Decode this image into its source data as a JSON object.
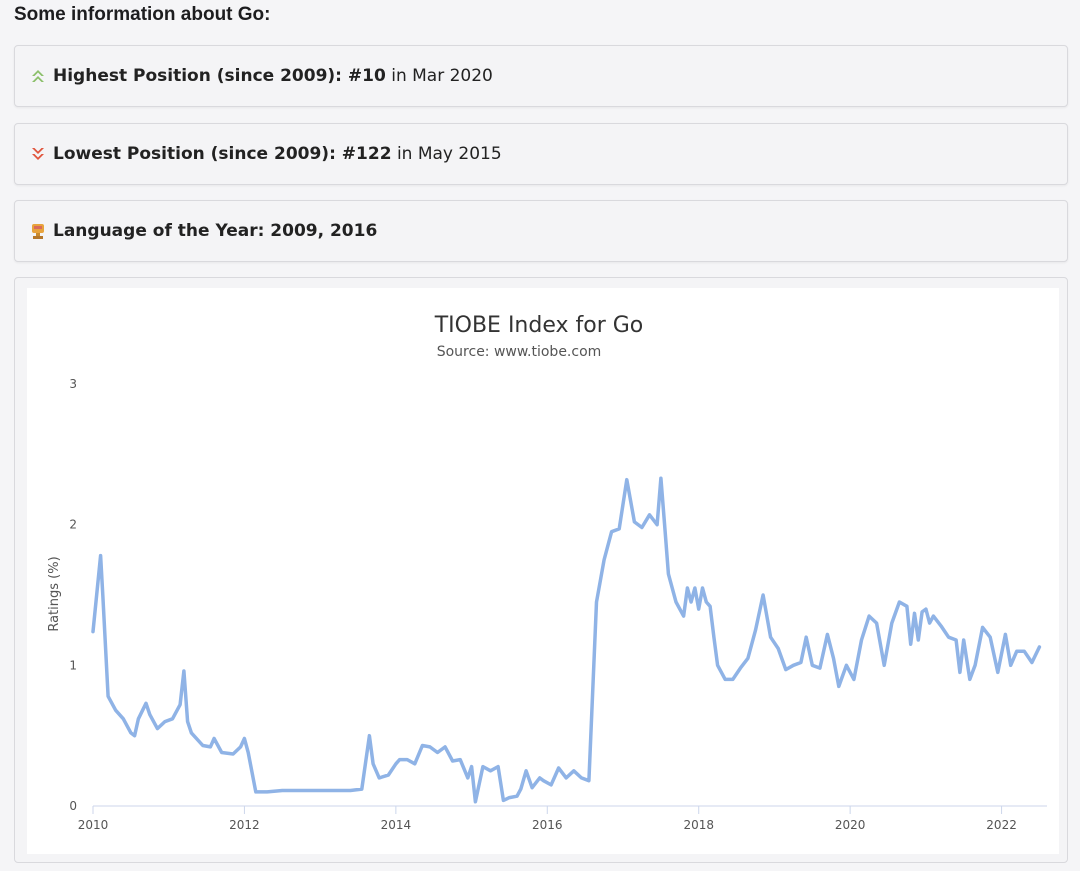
{
  "heading": "Some information about Go:",
  "info": {
    "highest": {
      "label": "Highest Position (since 2009): #10",
      "suffix": "in Mar 2020",
      "icon": "double-chevron-up-icon",
      "color": "#8bbf6a"
    },
    "lowest": {
      "label": "Lowest Position (since 2009): #122",
      "suffix": "in May 2015",
      "icon": "double-chevron-down-icon",
      "color": "#e0553d"
    },
    "language_of_year": {
      "label": "Language of the Year: 2009, 2016",
      "icon": "trophy-icon",
      "color": "#e8a33c"
    }
  },
  "chart_data": {
    "type": "line",
    "title": "TIOBE Index for Go",
    "subtitle": "Source: www.tiobe.com",
    "xlabel": "",
    "ylabel": "Ratings (%)",
    "xlim": [
      2010,
      2022.6
    ],
    "ylim": [
      0,
      3
    ],
    "x_ticks": [
      "2010",
      "2012",
      "2014",
      "2016",
      "2018",
      "2020",
      "2022"
    ],
    "y_ticks": [
      "0",
      "1",
      "2",
      "3"
    ],
    "grid": false,
    "line_color": "#8fb3e6",
    "series": [
      {
        "x": [
          2010.0,
          2010.1,
          2010.13,
          2010.2,
          2010.3,
          2010.4,
          2010.5,
          2010.55,
          2010.6,
          2010.7,
          2010.75,
          2010.85,
          2010.95,
          2011.05,
          2011.15,
          2011.2,
          2011.25,
          2011.3,
          2011.45,
          2011.55,
          2011.6,
          2011.7,
          2011.85,
          2011.95,
          2012.0,
          2012.05,
          2012.15,
          2012.3,
          2012.5,
          2012.8,
          2013.1,
          2013.4,
          2013.55,
          2013.65,
          2013.7,
          2013.78,
          2013.9,
          2014.0,
          2014.05,
          2014.15,
          2014.25,
          2014.35,
          2014.45,
          2014.55,
          2014.65,
          2014.75,
          2014.85,
          2014.95,
          2015.0,
          2015.05,
          2015.15,
          2015.25,
          2015.35,
          2015.42,
          2015.5,
          2015.6,
          2015.65,
          2015.72,
          2015.8,
          2015.9,
          2015.95,
          2016.05,
          2016.15,
          2016.25,
          2016.35,
          2016.45,
          2016.55,
          2016.65,
          2016.75,
          2016.85,
          2016.95,
          2017.05,
          2017.15,
          2017.25,
          2017.35,
          2017.45,
          2017.5,
          2017.55,
          2017.6,
          2017.7,
          2017.8,
          2017.85,
          2017.9,
          2017.95,
          2018.0,
          2018.05,
          2018.1,
          2018.15,
          2018.2,
          2018.25,
          2018.35,
          2018.45,
          2018.55,
          2018.65,
          2018.75,
          2018.85,
          2018.95,
          2019.05,
          2019.15,
          2019.25,
          2019.35,
          2019.42,
          2019.5,
          2019.6,
          2019.7,
          2019.78,
          2019.85,
          2019.95,
          2020.05,
          2020.15,
          2020.25,
          2020.35,
          2020.45,
          2020.55,
          2020.65,
          2020.75,
          2020.8,
          2020.85,
          2020.9,
          2020.95,
          2021.0,
          2021.05,
          2021.1,
          2021.2,
          2021.3,
          2021.4,
          2021.45,
          2021.5,
          2021.58,
          2021.65,
          2021.75,
          2021.85,
          2021.95,
          2022.05,
          2022.12,
          2022.2,
          2022.3,
          2022.4,
          2022.5
        ],
        "y": [
          1.24,
          1.78,
          1.5,
          0.78,
          0.68,
          0.62,
          0.52,
          0.5,
          0.62,
          0.73,
          0.65,
          0.55,
          0.6,
          0.62,
          0.72,
          0.96,
          0.6,
          0.52,
          0.43,
          0.42,
          0.48,
          0.38,
          0.37,
          0.42,
          0.48,
          0.38,
          0.1,
          0.1,
          0.11,
          0.11,
          0.11,
          0.11,
          0.12,
          0.5,
          0.3,
          0.2,
          0.22,
          0.3,
          0.33,
          0.33,
          0.3,
          0.43,
          0.42,
          0.38,
          0.42,
          0.32,
          0.33,
          0.2,
          0.28,
          0.03,
          0.28,
          0.25,
          0.28,
          0.04,
          0.06,
          0.07,
          0.12,
          0.25,
          0.13,
          0.2,
          0.18,
          0.15,
          0.27,
          0.2,
          0.25,
          0.2,
          0.18,
          1.45,
          1.75,
          1.95,
          1.97,
          2.32,
          2.02,
          1.98,
          2.07,
          2.0,
          2.33,
          2.0,
          1.65,
          1.45,
          1.35,
          1.55,
          1.45,
          1.55,
          1.4,
          1.55,
          1.45,
          1.42,
          1.2,
          1.0,
          0.9,
          0.9,
          0.98,
          1.05,
          1.25,
          1.5,
          1.2,
          1.12,
          0.97,
          1.0,
          1.02,
          1.2,
          1.0,
          0.98,
          1.22,
          1.05,
          0.85,
          1.0,
          0.9,
          1.18,
          1.35,
          1.3,
          1.0,
          1.3,
          1.45,
          1.42,
          1.15,
          1.37,
          1.18,
          1.38,
          1.4,
          1.3,
          1.35,
          1.28,
          1.2,
          1.18,
          0.95,
          1.18,
          0.9,
          1.0,
          1.27,
          1.2,
          0.95,
          1.22,
          1.0,
          1.1,
          1.1,
          1.02,
          1.13
        ]
      }
    ]
  }
}
